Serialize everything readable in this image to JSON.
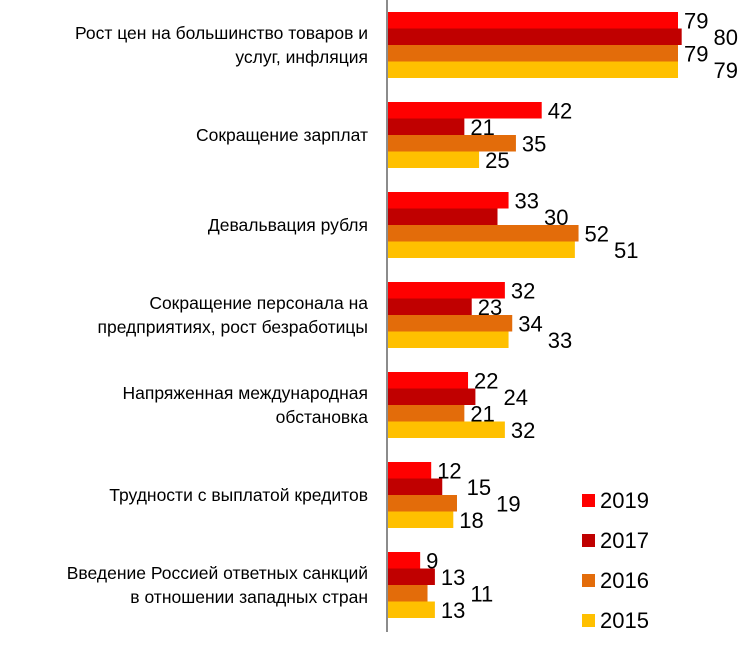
{
  "chart_data": {
    "type": "bar",
    "orientation": "horizontal",
    "title": "",
    "xlabel": "",
    "ylabel": "",
    "xlim": [
      0,
      100
    ],
    "grid": false,
    "legend_position": "bottom-right",
    "categories": [
      [
        "Рост цен на большинство товаров и",
        "услуг, инфляция"
      ],
      [
        "Сокращение зарплат"
      ],
      [
        "Девальвация рубля"
      ],
      [
        "Сокращение персонала на",
        "предприятиях, рост безработицы"
      ],
      [
        "Напряженная международная",
        "обстановка"
      ],
      [
        "Трудности с выплатой кредитов"
      ],
      [
        "Введение Россией ответных санкций",
        "в отношении западных стран"
      ]
    ],
    "series": [
      {
        "name": "2019",
        "color": "#FF0000",
        "values": [
          79,
          42,
          33,
          32,
          22,
          12,
          9
        ]
      },
      {
        "name": "2017",
        "color": "#C00000",
        "values": [
          80,
          21,
          30,
          23,
          24,
          15,
          13
        ]
      },
      {
        "name": "2016",
        "color": "#E36C0A",
        "values": [
          79,
          35,
          52,
          34,
          21,
          19,
          11
        ]
      },
      {
        "name": "2015",
        "color": "#FFC000",
        "values": [
          79,
          25,
          51,
          33,
          32,
          18,
          13
        ]
      }
    ]
  }
}
